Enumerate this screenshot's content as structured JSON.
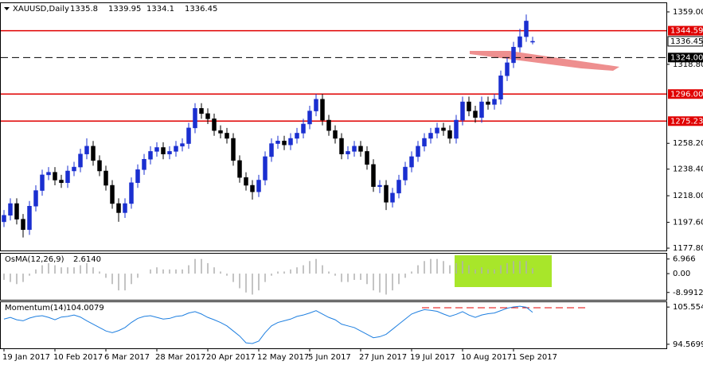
{
  "chart_data": [
    {
      "type": "candlestick",
      "title": "XAUUSD,Daily",
      "categories": [
        "19 Jan 2017",
        null,
        null,
        null,
        null,
        null,
        null,
        null,
        "10 Feb 2017",
        null,
        null,
        null,
        null,
        null,
        null,
        null,
        "6 Mar 2017",
        null,
        null,
        null,
        null,
        null,
        null,
        null,
        "28 Mar 2017",
        null,
        null,
        null,
        null,
        null,
        null,
        null,
        "20 Apr 2017",
        null,
        null,
        null,
        null,
        null,
        null,
        null,
        "12 May 2017",
        null,
        null,
        null,
        null,
        null,
        null,
        null,
        "5 Jun 2017",
        null,
        null,
        null,
        null,
        null,
        null,
        null,
        "27 Jun 2017",
        null,
        null,
        null,
        null,
        null,
        null,
        null,
        "19 Jul 2017",
        null,
        null,
        null,
        null,
        null,
        null,
        null,
        "10 Aug 2017",
        null,
        null,
        null,
        null,
        null,
        null,
        null,
        "1 Sep 2017",
        null,
        null,
        null
      ],
      "open": [
        1198,
        1203,
        1212,
        1200,
        1192,
        1210,
        1222,
        1234,
        1236,
        1230,
        1228,
        1237,
        1240,
        1250,
        1256,
        1245,
        1237,
        1226,
        1212,
        1205,
        1212,
        1228,
        1238,
        1246,
        1252,
        1255,
        1250,
        1252,
        1256,
        1258,
        1270,
        1285,
        1281,
        1277,
        1268,
        1266,
        1262,
        1245,
        1232,
        1226,
        1221,
        1230,
        1248,
        1258,
        1260,
        1257,
        1262,
        1266,
        1273,
        1283,
        1292,
        1276,
        1268,
        1262,
        1250,
        1252,
        1256,
        1252,
        1242,
        1225,
        1226,
        1213,
        1220,
        1230,
        1240,
        1248,
        1256,
        1262,
        1266,
        1270,
        1268,
        1262,
        1276,
        1290,
        1283,
        1278,
        1290,
        1288,
        1292,
        1310,
        1320,
        1332,
        1340,
        1335.8
      ],
      "high": [
        1207,
        1216,
        1216,
        1204,
        1214,
        1226,
        1238,
        1240,
        1240,
        1234,
        1241,
        1244,
        1254,
        1262,
        1260,
        1249,
        1241,
        1230,
        1216,
        1216,
        1232,
        1242,
        1250,
        1256,
        1259,
        1259,
        1256,
        1260,
        1262,
        1274,
        1289,
        1289,
        1285,
        1281,
        1272,
        1270,
        1266,
        1249,
        1236,
        1230,
        1234,
        1252,
        1262,
        1264,
        1264,
        1266,
        1270,
        1277,
        1287,
        1296,
        1296,
        1280,
        1272,
        1266,
        1256,
        1260,
        1260,
        1256,
        1246,
        1230,
        1230,
        1224,
        1234,
        1244,
        1252,
        1260,
        1266,
        1270,
        1274,
        1274,
        1272,
        1280,
        1294,
        1294,
        1287,
        1294,
        1294,
        1296,
        1314,
        1324,
        1336,
        1346,
        1357,
        1339.95
      ],
      "low": [
        1194,
        1199,
        1196,
        1186,
        1188,
        1206,
        1218,
        1230,
        1226,
        1224,
        1224,
        1233,
        1236,
        1246,
        1241,
        1233,
        1222,
        1208,
        1198,
        1201,
        1208,
        1224,
        1234,
        1242,
        1248,
        1246,
        1246,
        1248,
        1252,
        1254,
        1266,
        1277,
        1273,
        1264,
        1262,
        1258,
        1241,
        1228,
        1222,
        1215,
        1217,
        1226,
        1244,
        1254,
        1253,
        1253,
        1258,
        1262,
        1269,
        1279,
        1272,
        1264,
        1258,
        1246,
        1246,
        1248,
        1248,
        1238,
        1221,
        1220,
        1207,
        1209,
        1216,
        1226,
        1236,
        1244,
        1252,
        1258,
        1262,
        1264,
        1258,
        1258,
        1272,
        1279,
        1274,
        1274,
        1284,
        1284,
        1288,
        1306,
        1316,
        1328,
        1336,
        1334.1
      ],
      "close": [
        1203,
        1212,
        1200,
        1192,
        1210,
        1222,
        1234,
        1236,
        1230,
        1228,
        1237,
        1240,
        1250,
        1256,
        1245,
        1237,
        1226,
        1212,
        1205,
        1212,
        1228,
        1238,
        1246,
        1252,
        1255,
        1250,
        1252,
        1256,
        1258,
        1270,
        1285,
        1281,
        1277,
        1268,
        1266,
        1262,
        1245,
        1232,
        1226,
        1221,
        1230,
        1248,
        1258,
        1260,
        1257,
        1262,
        1266,
        1273,
        1283,
        1292,
        1276,
        1268,
        1262,
        1250,
        1252,
        1256,
        1252,
        1242,
        1225,
        1226,
        1213,
        1220,
        1230,
        1240,
        1248,
        1256,
        1262,
        1266,
        1270,
        1268,
        1262,
        1276,
        1290,
        1283,
        1278,
        1290,
        1288,
        1292,
        1310,
        1320,
        1332,
        1340,
        1352,
        1336.45
      ],
      "up_color": "#1a2fd0",
      "down_color": "#000000",
      "ylim": [
        1176,
        1366.3
      ],
      "yticks": [
        {
          "value": 1359,
          "label": "1359.00"
        },
        {
          "value": 1318.8,
          "label": "1318.80"
        },
        {
          "value": 1258.2,
          "label": "1258.20"
        },
        {
          "value": 1238.4,
          "label": "1238.40"
        },
        {
          "value": 1218,
          "label": "1218.00"
        },
        {
          "value": 1197.6,
          "label": "1197.60"
        },
        {
          "value": 1177.8,
          "label": "1177.80"
        }
      ],
      "levels": [
        {
          "value": 1344.59,
          "color": "#e00000",
          "style": "solid"
        },
        {
          "value": 1324,
          "label": "1324.00",
          "color": "#000000",
          "style": "dashed"
        },
        {
          "value": 1296,
          "label": "1296.00",
          "color": "#e00000",
          "style": "solid"
        },
        {
          "value": 1275.23,
          "color": "#e00000",
          "style": "solid"
        }
      ]
    },
    {
      "type": "bar",
      "title": "OsMA(12,26,9)",
      "current_label": "2.6140",
      "color": "#b0b0b0",
      "values": [
        -3,
        -4,
        -5,
        -4,
        -1,
        2,
        4,
        5,
        4,
        3,
        3,
        3,
        4,
        5,
        3,
        1,
        -2,
        -5,
        -8,
        -8,
        -5,
        -2,
        0,
        2,
        3,
        2,
        2,
        2,
        2,
        4,
        7,
        7,
        5,
        3,
        1,
        -1,
        -4,
        -7,
        -9,
        -10,
        -8,
        -4,
        -1,
        1,
        1,
        2,
        3,
        4,
        6,
        7,
        4,
        1,
        -1,
        -4,
        -4,
        -3,
        -3,
        -5,
        -8,
        -9,
        -10,
        -8,
        -5,
        -2,
        1,
        4,
        6,
        7,
        7,
        6,
        4,
        5,
        6,
        4,
        2,
        3,
        2,
        2,
        4,
        5,
        6,
        6,
        6,
        2.614
      ],
      "ylim": [
        -12.5,
        9.9
      ],
      "yticks": [
        6.966,
        {
          "value": 0,
          "label": "0.00"
        },
        -8.9912
      ]
    },
    {
      "type": "line",
      "title": "Momentum(14)",
      "color": "#1e7fe0",
      "values": [
        102,
        102.5,
        101.8,
        101.5,
        102.3,
        102.8,
        103,
        102.5,
        101.8,
        102.6,
        102.8,
        103.2,
        102.6,
        101.5,
        100.5,
        99.5,
        98.5,
        98,
        98.6,
        99.5,
        101,
        102.2,
        102.8,
        103,
        102.5,
        102,
        102.2,
        102.8,
        103,
        103.8,
        104.2,
        103.5,
        102.5,
        101.8,
        101,
        100,
        98.5,
        97,
        95,
        94.8,
        95.5,
        98,
        100,
        101,
        101.5,
        102,
        102.8,
        103.2,
        103.8,
        104.5,
        103.5,
        102.5,
        101.8,
        100.5,
        100,
        99.5,
        98.5,
        97.5,
        96.5,
        96.8,
        97.5,
        99,
        100.5,
        102,
        103.5,
        104.2,
        104.8,
        104.6,
        104.3,
        103.5,
        102.8,
        103.4,
        104.2,
        103.2,
        102.5,
        103.2,
        103.6,
        103.8,
        104.5,
        105.2,
        105.6,
        105.8,
        105.5,
        104.0079
      ],
      "ylim": [
        93.38,
        107.23
      ],
      "yticks": [
        105.5547,
        94.5699
      ]
    }
  ]
}
